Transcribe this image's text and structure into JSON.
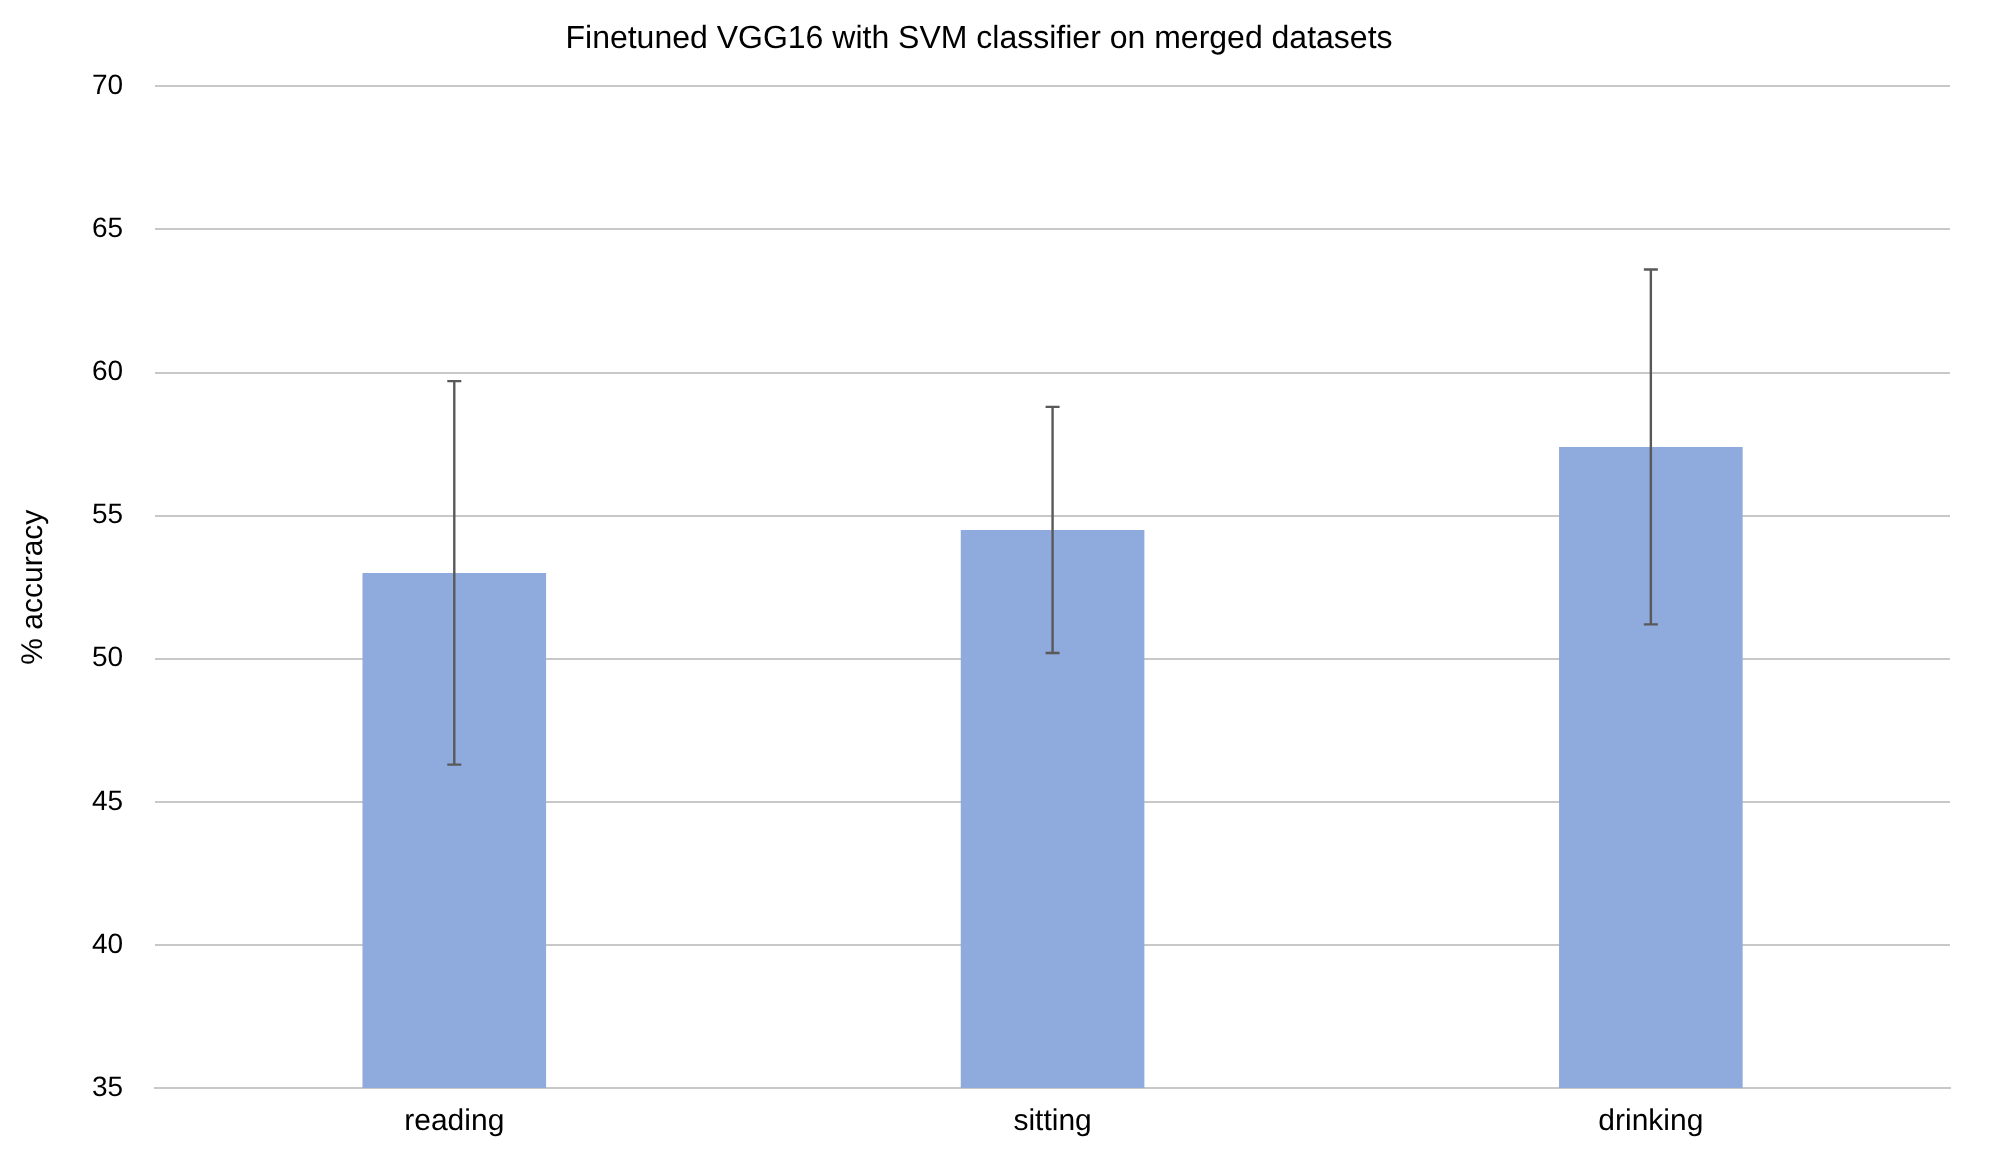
{
  "chart_data": {
    "type": "bar",
    "title": "Finetuned VGG16 with SVM classifier on merged datasets",
    "ylabel": "% accuracy",
    "categories": [
      "reading",
      "sitting",
      "drinking"
    ],
    "series": [
      {
        "color": "#8faadc",
        "values": [
          53.0,
          54.5,
          57.4
        ],
        "errors": [
          6.7,
          4.3,
          6.2
        ]
      }
    ],
    "ylim": [
      35,
      70
    ],
    "yticks": [
      35,
      40,
      45,
      50,
      55,
      60,
      65,
      70
    ],
    "grid": "y",
    "legend": false
  }
}
